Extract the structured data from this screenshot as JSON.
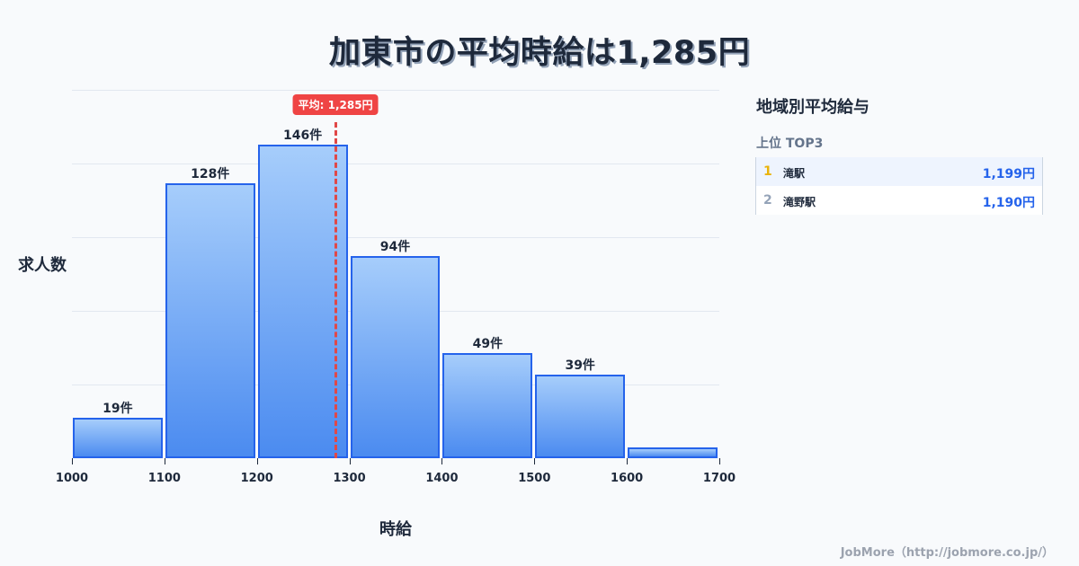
{
  "title": "加東市の平均時給は1,285円",
  "chart_data": {
    "type": "bar",
    "title": "加東市の平均時給は1,285円",
    "xlabel": "時給",
    "ylabel": "求人数",
    "bins": [
      [
        1000,
        1100
      ],
      [
        1100,
        1200
      ],
      [
        1200,
        1300
      ],
      [
        1300,
        1400
      ],
      [
        1400,
        1500
      ],
      [
        1500,
        1600
      ],
      [
        1600,
        1700
      ]
    ],
    "categories": [
      "1000-1100",
      "1100-1200",
      "1200-1300",
      "1300-1400",
      "1400-1500",
      "1500-1600",
      "1600-1700"
    ],
    "values": [
      19,
      128,
      146,
      94,
      49,
      39,
      5
    ],
    "value_labels": [
      "19件",
      "128件",
      "146件",
      "94件",
      "49件",
      "39件",
      ""
    ],
    "x_ticks": [
      "1000",
      "1100",
      "1200",
      "1300",
      "1400",
      "1500",
      "1600",
      "1700"
    ],
    "xlim": [
      1000,
      1700
    ],
    "ylim": [
      0,
      171
    ],
    "grid": true,
    "average": {
      "value": 1285,
      "label": "平均: 1,285円",
      "color": "#ef4444"
    },
    "bar_color_top": "#a6cdfb",
    "bar_color_bottom": "#4b8bf0",
    "bar_border": "#2563eb"
  },
  "panel": {
    "title": "地域別平均給与",
    "subtitle": "上位 TOP3",
    "rows": [
      {
        "rank": "1",
        "name": "滝駅",
        "value": "1,199円",
        "rank_color": "#eab308"
      },
      {
        "rank": "2",
        "name": "滝野駅",
        "value": "1,190円",
        "rank_color": "#94a3b8"
      }
    ]
  },
  "footer": "JobMore（http://jobmore.co.jp/）"
}
